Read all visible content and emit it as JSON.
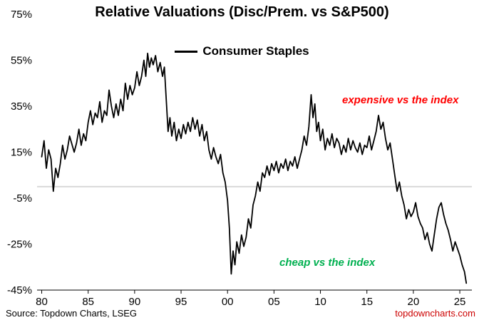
{
  "title": "Relative Valuations (Disc/Prem. vs S&P500)",
  "legend": {
    "label": "Consumer Staples",
    "line_color": "#000000"
  },
  "annotations": {
    "expensive": {
      "text": "expensive vs the index",
      "color": "#ff0000"
    },
    "cheap": {
      "text": "cheap vs the index",
      "color": "#00b050"
    }
  },
  "footer": {
    "source": "Source: Topdown Charts, LSEG",
    "site": "topdowncharts.com",
    "site_color": "#cc0000"
  },
  "chart_data": {
    "type": "line",
    "title": "Relative Valuations (Disc/Prem. vs S&P500)",
    "xlabel": "",
    "ylabel": "",
    "xlim": [
      1979.5,
      2026.3
    ],
    "ylim": [
      -45,
      75
    ],
    "y_ticks": [
      75,
      55,
      35,
      15,
      -5,
      -25,
      -45
    ],
    "y_tick_labels": [
      "75%",
      "55%",
      "35%",
      "15%",
      "-5%",
      "-25%",
      "-45%"
    ],
    "x_ticks": [
      1980,
      1985,
      1990,
      1995,
      2000,
      2005,
      2010,
      2015,
      2020,
      2025
    ],
    "x_tick_labels": [
      "80",
      "85",
      "90",
      "95",
      "00",
      "05",
      "10",
      "15",
      "20",
      "25"
    ],
    "zero_line": true,
    "zero_line_color": "#d9d9d9",
    "grid": false,
    "legend_position": "top-center",
    "series": [
      {
        "name": "Consumer Staples",
        "color": "#000000",
        "points": [
          [
            1980.0,
            13
          ],
          [
            1980.25,
            20
          ],
          [
            1980.5,
            8
          ],
          [
            1980.75,
            16
          ],
          [
            1981.0,
            12
          ],
          [
            1981.25,
            -2
          ],
          [
            1981.5,
            8
          ],
          [
            1981.75,
            4
          ],
          [
            1982.0,
            10
          ],
          [
            1982.25,
            18
          ],
          [
            1982.5,
            12
          ],
          [
            1982.75,
            16
          ],
          [
            1983.0,
            22
          ],
          [
            1983.5,
            15
          ],
          [
            1983.75,
            19
          ],
          [
            1984.0,
            25
          ],
          [
            1984.25,
            18
          ],
          [
            1984.5,
            23
          ],
          [
            1984.75,
            20
          ],
          [
            1985.0,
            28
          ],
          [
            1985.25,
            33
          ],
          [
            1985.5,
            27
          ],
          [
            1985.75,
            32
          ],
          [
            1986.0,
            30
          ],
          [
            1986.25,
            37
          ],
          [
            1986.5,
            28
          ],
          [
            1986.75,
            33
          ],
          [
            1987.0,
            31
          ],
          [
            1987.25,
            42
          ],
          [
            1987.5,
            35
          ],
          [
            1987.75,
            30
          ],
          [
            1988.0,
            36
          ],
          [
            1988.25,
            31
          ],
          [
            1988.5,
            38
          ],
          [
            1988.75,
            33
          ],
          [
            1989.0,
            45
          ],
          [
            1989.25,
            38
          ],
          [
            1989.5,
            44
          ],
          [
            1989.75,
            40
          ],
          [
            1990.0,
            43
          ],
          [
            1990.25,
            50
          ],
          [
            1990.5,
            44
          ],
          [
            1990.75,
            48
          ],
          [
            1991.0,
            55
          ],
          [
            1991.2,
            48
          ],
          [
            1991.4,
            58
          ],
          [
            1991.6,
            52
          ],
          [
            1991.8,
            56
          ],
          [
            1992.0,
            53
          ],
          [
            1992.25,
            57
          ],
          [
            1992.5,
            50
          ],
          [
            1992.75,
            54
          ],
          [
            1993.0,
            48
          ],
          [
            1993.2,
            52
          ],
          [
            1993.4,
            38
          ],
          [
            1993.6,
            24
          ],
          [
            1993.8,
            30
          ],
          [
            1994.0,
            22
          ],
          [
            1994.25,
            28
          ],
          [
            1994.5,
            20
          ],
          [
            1994.75,
            25
          ],
          [
            1995.0,
            21
          ],
          [
            1995.25,
            27
          ],
          [
            1995.5,
            23
          ],
          [
            1995.75,
            28
          ],
          [
            1996.0,
            24
          ],
          [
            1996.25,
            30
          ],
          [
            1996.5,
            25
          ],
          [
            1996.75,
            29
          ],
          [
            1997.0,
            22
          ],
          [
            1997.25,
            27
          ],
          [
            1997.5,
            20
          ],
          [
            1997.75,
            24
          ],
          [
            1998.0,
            16
          ],
          [
            1998.25,
            12
          ],
          [
            1998.5,
            17
          ],
          [
            1998.75,
            13
          ],
          [
            1999.0,
            10
          ],
          [
            1999.25,
            14
          ],
          [
            1999.5,
            6
          ],
          [
            1999.75,
            2
          ],
          [
            2000.0,
            -6
          ],
          [
            2000.2,
            -18
          ],
          [
            2000.4,
            -38
          ],
          [
            2000.6,
            -28
          ],
          [
            2000.8,
            -34
          ],
          [
            2001.0,
            -24
          ],
          [
            2001.25,
            -29
          ],
          [
            2001.5,
            -21
          ],
          [
            2001.75,
            -26
          ],
          [
            2002.0,
            -22
          ],
          [
            2002.25,
            -14
          ],
          [
            2002.5,
            -18
          ],
          [
            2002.75,
            -8
          ],
          [
            2003.0,
            -4
          ],
          [
            2003.25,
            2
          ],
          [
            2003.5,
            -2
          ],
          [
            2003.75,
            6
          ],
          [
            2004.0,
            4
          ],
          [
            2004.25,
            9
          ],
          [
            2004.5,
            5
          ],
          [
            2004.75,
            10
          ],
          [
            2005.0,
            7
          ],
          [
            2005.25,
            11
          ],
          [
            2005.5,
            6
          ],
          [
            2005.75,
            10
          ],
          [
            2006.0,
            8
          ],
          [
            2006.25,
            12
          ],
          [
            2006.5,
            7
          ],
          [
            2006.75,
            11
          ],
          [
            2007.0,
            9
          ],
          [
            2007.25,
            13
          ],
          [
            2007.5,
            8
          ],
          [
            2007.75,
            12
          ],
          [
            2008.0,
            16
          ],
          [
            2008.25,
            22
          ],
          [
            2008.5,
            18
          ],
          [
            2008.75,
            26
          ],
          [
            2009.0,
            40
          ],
          [
            2009.2,
            30
          ],
          [
            2009.4,
            36
          ],
          [
            2009.6,
            24
          ],
          [
            2009.8,
            28
          ],
          [
            2010.0,
            20
          ],
          [
            2010.25,
            25
          ],
          [
            2010.5,
            16
          ],
          [
            2010.75,
            21
          ],
          [
            2011.0,
            18
          ],
          [
            2011.25,
            23
          ],
          [
            2011.5,
            17
          ],
          [
            2011.75,
            21
          ],
          [
            2012.0,
            19
          ],
          [
            2012.25,
            14
          ],
          [
            2012.5,
            18
          ],
          [
            2012.75,
            15
          ],
          [
            2013.0,
            21
          ],
          [
            2013.25,
            16
          ],
          [
            2013.5,
            20
          ],
          [
            2013.75,
            17
          ],
          [
            2014.0,
            15
          ],
          [
            2014.25,
            19
          ],
          [
            2014.5,
            14
          ],
          [
            2014.75,
            18
          ],
          [
            2015.0,
            17
          ],
          [
            2015.25,
            22
          ],
          [
            2015.5,
            16
          ],
          [
            2015.75,
            20
          ],
          [
            2016.0,
            24
          ],
          [
            2016.25,
            31
          ],
          [
            2016.5,
            25
          ],
          [
            2016.75,
            28
          ],
          [
            2017.0,
            21
          ],
          [
            2017.25,
            16
          ],
          [
            2017.5,
            19
          ],
          [
            2017.75,
            12
          ],
          [
            2018.0,
            5
          ],
          [
            2018.25,
            -2
          ],
          [
            2018.5,
            2
          ],
          [
            2018.75,
            -4
          ],
          [
            2019.0,
            -8
          ],
          [
            2019.25,
            -14
          ],
          [
            2019.5,
            -10
          ],
          [
            2019.75,
            -13
          ],
          [
            2020.0,
            -11
          ],
          [
            2020.25,
            -7
          ],
          [
            2020.5,
            -13
          ],
          [
            2020.75,
            -16
          ],
          [
            2021.0,
            -18
          ],
          [
            2021.25,
            -23
          ],
          [
            2021.5,
            -20
          ],
          [
            2021.75,
            -25
          ],
          [
            2022.0,
            -28
          ],
          [
            2022.25,
            -21
          ],
          [
            2022.5,
            -14
          ],
          [
            2022.75,
            -9
          ],
          [
            2023.0,
            -7
          ],
          [
            2023.25,
            -12
          ],
          [
            2023.5,
            -16
          ],
          [
            2023.75,
            -19
          ],
          [
            2024.0,
            -23
          ],
          [
            2024.25,
            -28
          ],
          [
            2024.5,
            -24
          ],
          [
            2024.75,
            -27
          ],
          [
            2025.0,
            -30
          ],
          [
            2025.25,
            -34
          ],
          [
            2025.5,
            -37
          ],
          [
            2025.7,
            -42
          ]
        ]
      }
    ]
  }
}
